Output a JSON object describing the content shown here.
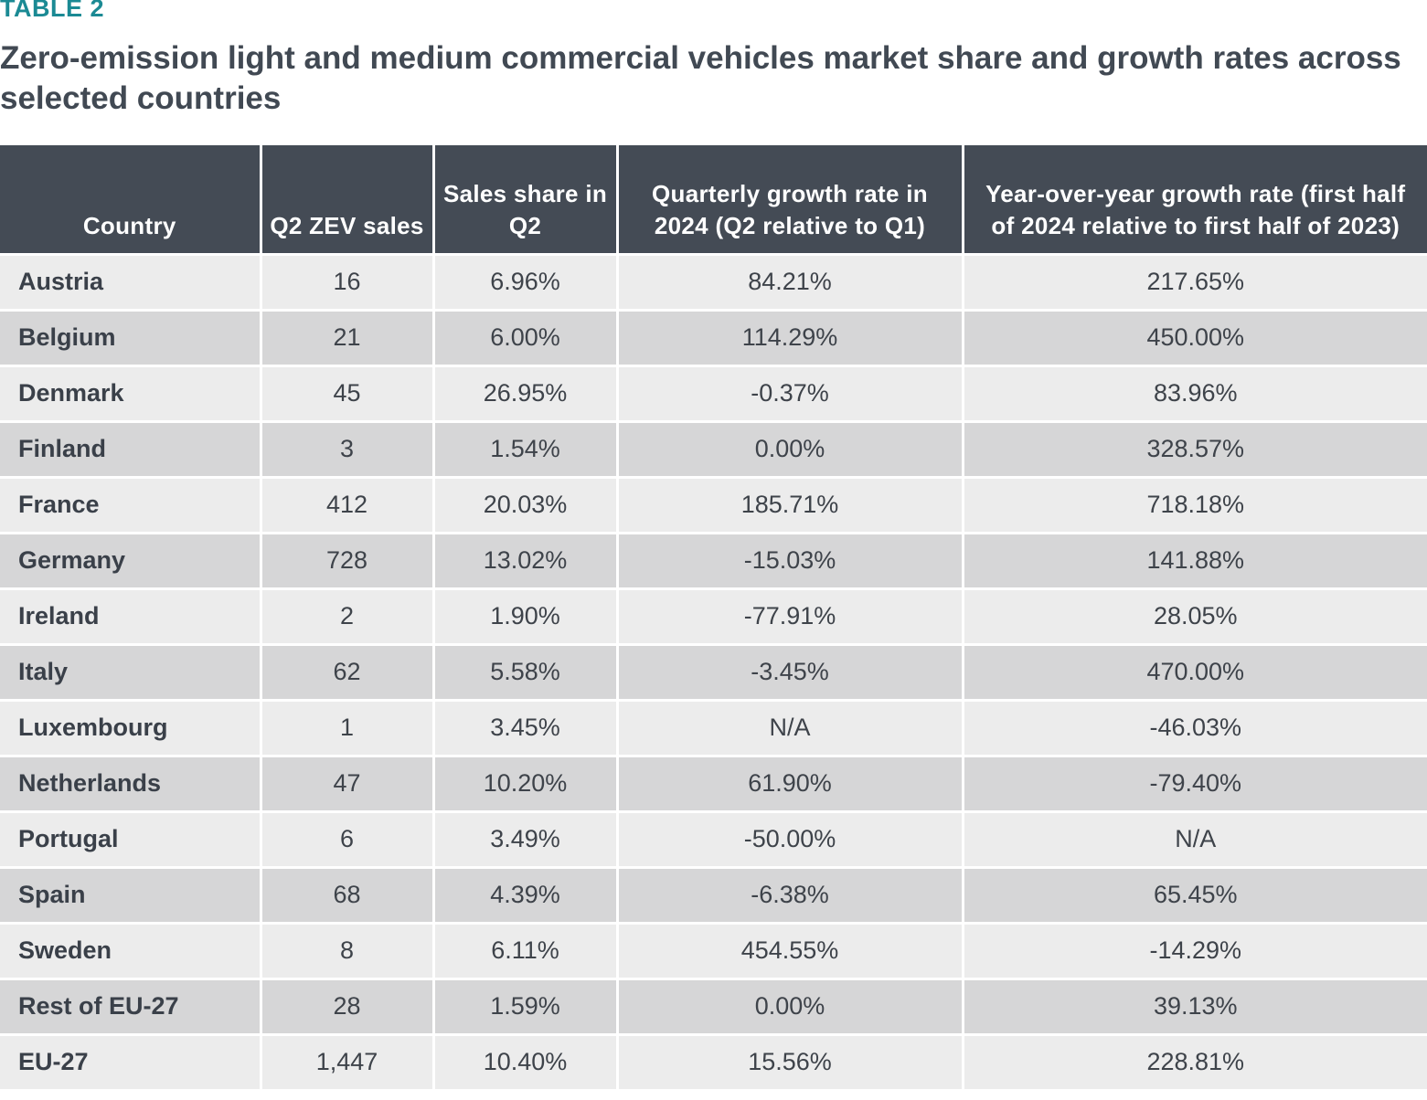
{
  "label": "TABLE 2",
  "title": "Zero-emission light and medium commercial vehicles market share and growth rates across selected countries",
  "columns": [
    "Country",
    "Q2 ZEV sales",
    "Sales share in Q2",
    "Quarterly growth rate in 2024 (Q2 relative to Q1)",
    "Year-over-year growth rate (first half of 2024 relative to first half of 2023)"
  ],
  "rows": [
    [
      "Austria",
      "16",
      "6.96%",
      "84.21%",
      "217.65%"
    ],
    [
      "Belgium",
      "21",
      "6.00%",
      "114.29%",
      "450.00%"
    ],
    [
      "Denmark",
      "45",
      "26.95%",
      "-0.37%",
      "83.96%"
    ],
    [
      "Finland",
      "3",
      "1.54%",
      "0.00%",
      "328.57%"
    ],
    [
      "France",
      "412",
      "20.03%",
      "185.71%",
      "718.18%"
    ],
    [
      "Germany",
      "728",
      "13.02%",
      "-15.03%",
      "141.88%"
    ],
    [
      "Ireland",
      "2",
      "1.90%",
      "-77.91%",
      "28.05%"
    ],
    [
      "Italy",
      "62",
      "5.58%",
      "-3.45%",
      "470.00%"
    ],
    [
      "Luxembourg",
      "1",
      "3.45%",
      "N/A",
      "-46.03%"
    ],
    [
      "Netherlands",
      "47",
      "10.20%",
      "61.90%",
      "-79.40%"
    ],
    [
      "Portugal",
      "6",
      "3.49%",
      "-50.00%",
      "N/A"
    ],
    [
      "Spain",
      "68",
      "4.39%",
      "-6.38%",
      "65.45%"
    ],
    [
      "Sweden",
      "8",
      "6.11%",
      "454.55%",
      "-14.29%"
    ],
    [
      "Rest of EU-27",
      "28",
      "1.59%",
      "0.00%",
      "39.13%"
    ],
    [
      "EU-27",
      "1,447",
      "10.40%",
      "15.56%",
      "228.81%"
    ]
  ],
  "colors": {
    "label": "#1b8a94",
    "title": "#414953",
    "header_bg": "#444b55",
    "row_light": "#ececec",
    "row_dark": "#d6d6d7"
  }
}
